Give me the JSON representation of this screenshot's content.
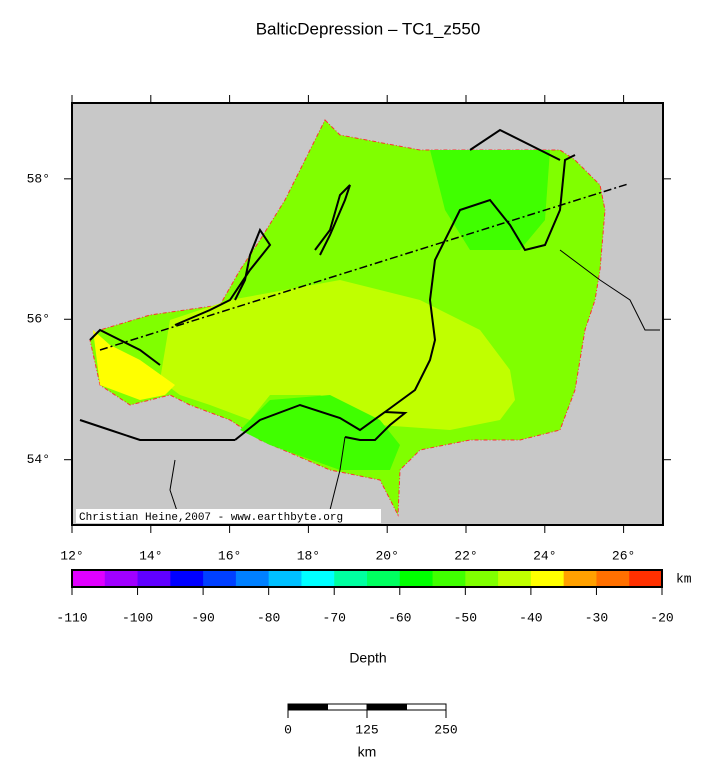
{
  "title": "BalticDepression – TC1_z550",
  "map": {
    "xlim": [
      12,
      27
    ],
    "ylim": [
      53.07,
      59.08
    ],
    "xticks": [
      {
        "value": 12,
        "label": "12°"
      },
      {
        "value": 14,
        "label": "14°"
      },
      {
        "value": 16,
        "label": "16°"
      },
      {
        "value": 18,
        "label": "18°"
      },
      {
        "value": 20,
        "label": "20°"
      },
      {
        "value": 22,
        "label": "22°"
      },
      {
        "value": 24,
        "label": "24°"
      },
      {
        "value": 26,
        "label": "26°"
      }
    ],
    "yticks": [
      {
        "value": 54,
        "label": "54°"
      },
      {
        "value": 56,
        "label": "56°"
      },
      {
        "value": 58,
        "label": "58°"
      }
    ],
    "credit": "Christian Heine,2007 - www.earthbyte.org"
  },
  "colorbar": {
    "label": "Depth",
    "unit": "km",
    "range": [
      -110,
      -20
    ],
    "ticks": [
      -110,
      -100,
      -90,
      -80,
      -70,
      -60,
      -50,
      -40,
      -30,
      -20
    ],
    "colors": [
      "#e000ff",
      "#a000ff",
      "#6000ff",
      "#0000ff",
      "#0040ff",
      "#0080ff",
      "#00c0ff",
      "#00ffff",
      "#00ffa0",
      "#00ff60",
      "#00ff00",
      "#40ff00",
      "#80ff00",
      "#c0ff00",
      "#ffff00",
      "#ffa000",
      "#ff7000",
      "#ff3000"
    ]
  },
  "scale_bar": {
    "range": [
      0,
      250
    ],
    "ticks": [
      0,
      125,
      250
    ],
    "unit": "km"
  }
}
